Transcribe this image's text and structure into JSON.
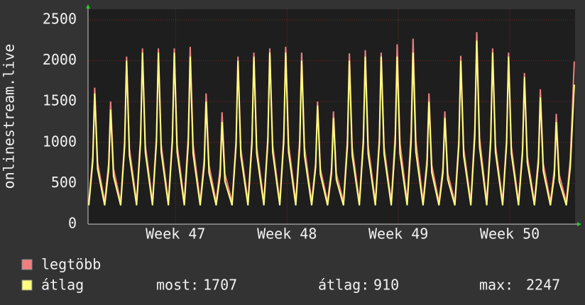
{
  "chart_data": {
    "type": "line",
    "y_label": "onlinestream.live",
    "xlim": [
      0,
      30.6
    ],
    "ylim": [
      0,
      2630
    ],
    "yticks": [
      0,
      500,
      1000,
      1500,
      2000,
      2500
    ],
    "xticks": [
      {
        "value": 5.5,
        "label": "Week 47"
      },
      {
        "value": 12.5,
        "label": "Week 48"
      },
      {
        "value": 19.5,
        "label": "Week 49"
      },
      {
        "value": 26.5,
        "label": "Week 50"
      }
    ],
    "grid": true,
    "x": [
      0.05,
      0.3,
      0.42,
      0.6,
      1.05,
      1.3,
      1.42,
      1.6,
      2.05,
      2.3,
      2.42,
      2.6,
      3.05,
      3.3,
      3.42,
      3.6,
      4.05,
      4.3,
      4.42,
      4.6,
      5.05,
      5.3,
      5.42,
      5.6,
      6.05,
      6.3,
      6.42,
      6.6,
      7.05,
      7.3,
      7.42,
      7.6,
      8.05,
      8.3,
      8.42,
      8.6,
      9.05,
      9.3,
      9.42,
      9.6,
      10.05,
      10.3,
      10.42,
      10.6,
      11.05,
      11.3,
      11.42,
      11.6,
      12.05,
      12.3,
      12.42,
      12.6,
      13.05,
      13.3,
      13.42,
      13.6,
      14.05,
      14.3,
      14.42,
      14.6,
      15.05,
      15.3,
      15.42,
      15.6,
      16.05,
      16.3,
      16.42,
      16.6,
      17.05,
      17.3,
      17.42,
      17.6,
      18.05,
      18.3,
      18.42,
      18.6,
      19.05,
      19.3,
      19.42,
      19.6,
      20.05,
      20.3,
      20.42,
      20.6,
      21.05,
      21.3,
      21.42,
      21.6,
      22.05,
      22.3,
      22.42,
      22.6,
      23.05,
      23.3,
      23.42,
      23.6,
      24.05,
      24.3,
      24.42,
      24.6,
      25.05,
      25.3,
      25.42,
      25.6,
      26.05,
      26.3,
      26.42,
      26.6,
      27.05,
      27.3,
      27.42,
      27.6,
      28.05,
      28.3,
      28.42,
      28.6,
      29.05,
      29.3,
      29.42,
      29.6,
      30.05,
      30.3,
      30.55
    ],
    "series": [
      {
        "name": "legtöbb",
        "color": "#f08080",
        "values": [
          270,
          835,
          1670,
          752,
          270,
          750,
          1500,
          675,
          270,
          1025,
          2050,
          922,
          270,
          1075,
          2150,
          968,
          270,
          1075,
          2150,
          968,
          270,
          1075,
          2150,
          968,
          270,
          1085,
          2170,
          976,
          270,
          800,
          1600,
          720,
          270,
          685,
          1370,
          616,
          270,
          1025,
          2050,
          922,
          270,
          1050,
          2100,
          945,
          270,
          1075,
          2150,
          968,
          270,
          1085,
          2170,
          976,
          270,
          1050,
          2100,
          945,
          270,
          750,
          1500,
          675,
          270,
          690,
          1380,
          621,
          270,
          1045,
          2090,
          940,
          270,
          1065,
          2130,
          958,
          270,
          1050,
          2100,
          945,
          270,
          1100,
          2200,
          990,
          270,
          1135,
          2270,
          1021,
          270,
          800,
          1600,
          720,
          270,
          690,
          1380,
          621,
          270,
          1030,
          2060,
          927,
          270,
          1175,
          2350,
          1057,
          270,
          1075,
          2150,
          968,
          270,
          1050,
          2100,
          945,
          270,
          925,
          1850,
          832,
          270,
          825,
          1650,
          742,
          270,
          675,
          1350,
          607,
          270,
          800,
          1990
        ]
      },
      {
        "name": "átlag",
        "color": "#ffff80",
        "values": [
          230,
          768,
          1600,
          672,
          230,
          672,
          1400,
          588,
          230,
          960,
          2000,
          840,
          230,
          1008,
          2100,
          882,
          230,
          1008,
          2100,
          882,
          230,
          1008,
          2100,
          882,
          230,
          984,
          2050,
          861,
          230,
          720,
          1500,
          630,
          230,
          600,
          1250,
          525,
          230,
          960,
          2000,
          840,
          230,
          984,
          2050,
          861,
          230,
          1008,
          2100,
          882,
          230,
          1008,
          2100,
          882,
          230,
          960,
          2000,
          840,
          230,
          696,
          1450,
          609,
          230,
          624,
          1300,
          546,
          230,
          960,
          2000,
          840,
          230,
          984,
          2050,
          861,
          230,
          984,
          2050,
          861,
          230,
          984,
          2050,
          861,
          230,
          1008,
          2100,
          882,
          230,
          720,
          1500,
          630,
          230,
          624,
          1300,
          546,
          230,
          960,
          2000,
          840,
          230,
          1079,
          2247,
          944,
          230,
          1008,
          2100,
          882,
          230,
          984,
          2050,
          861,
          230,
          864,
          1800,
          756,
          230,
          744,
          1550,
          651,
          230,
          600,
          1250,
          525,
          230,
          700,
          1707
        ]
      }
    ],
    "stats": [
      {
        "label": "most:",
        "value": 1707
      },
      {
        "label": "átlag:",
        "value": 910
      },
      {
        "label": "max:",
        "value": 2247
      }
    ]
  }
}
